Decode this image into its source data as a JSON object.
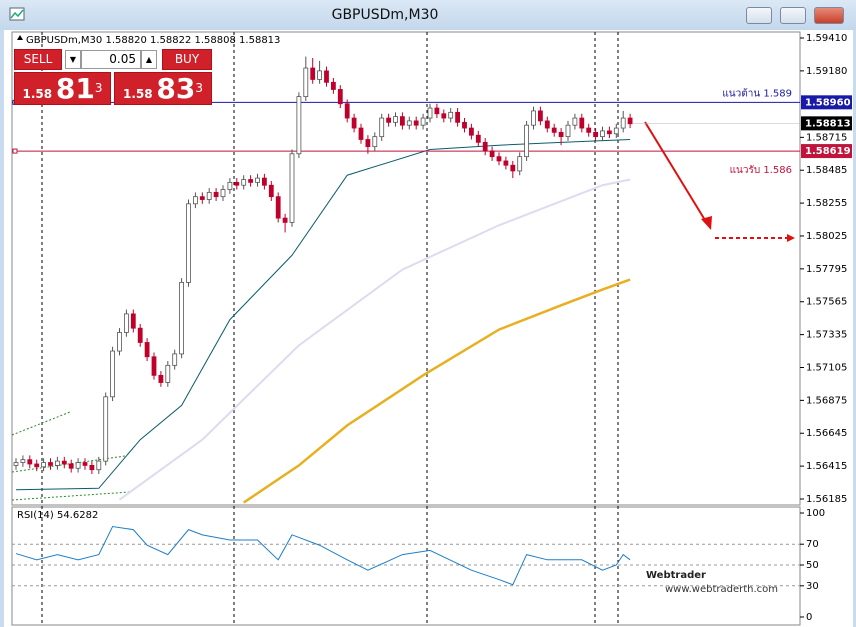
{
  "window": {
    "title": "GBPUSDm,M30"
  },
  "trade_panel": {
    "sell": "SELL",
    "lot": "0.05",
    "buy": "BUY",
    "bid": {
      "prefix": "1.58",
      "big": "81",
      "sup": "3"
    },
    "ask": {
      "prefix": "1.58",
      "big": "83",
      "sup": "3"
    }
  },
  "watermark": {
    "brand": "Webtrader",
    "url": "www.webtraderth.com"
  },
  "chart_data": {
    "type": "candlestick",
    "header": "GBPUSDm,M30 1.58820 1.58822 1.58808 1.58813",
    "ylim": [
      1.56185,
      1.5941
    ],
    "yticks": [
      {
        "value": 1.5941,
        "label": "1.59410"
      },
      {
        "value": 1.5918,
        "label": "1.59180"
      },
      {
        "value": 1.58715,
        "label": "1.58715"
      },
      {
        "value": 1.58485,
        "label": "1.58485"
      },
      {
        "value": 1.58255,
        "label": "1.58255"
      },
      {
        "value": 1.58025,
        "label": "1.58025"
      },
      {
        "value": 1.57795,
        "label": "1.57795"
      },
      {
        "value": 1.57565,
        "label": "1.57565"
      },
      {
        "value": 1.57335,
        "label": "1.57335"
      },
      {
        "value": 1.57105,
        "label": "1.57105"
      },
      {
        "value": 1.56875,
        "label": "1.56875"
      },
      {
        "value": 1.56645,
        "label": "1.56645"
      },
      {
        "value": 1.56415,
        "label": "1.56415"
      },
      {
        "value": 1.56185,
        "label": "1.56185"
      }
    ],
    "candles": {
      "open": [
        1.5642,
        1.5644,
        1.5646,
        1.5643,
        1.5641,
        1.5644,
        1.5642,
        1.5645,
        1.5643,
        1.564,
        1.5644,
        1.5642,
        1.5639,
        1.5645,
        1.569,
        1.5722,
        1.5735,
        1.5748,
        1.5738,
        1.5728,
        1.5718,
        1.5705,
        1.57,
        1.5712,
        1.572,
        1.577,
        1.5825,
        1.583,
        1.5828,
        1.5833,
        1.583,
        1.5835,
        1.584,
        1.5838,
        1.5842,
        1.584,
        1.5843,
        1.5838,
        1.583,
        1.5815,
        1.5812,
        1.586,
        1.59,
        1.592,
        1.5912,
        1.5918,
        1.591,
        1.5905,
        1.5895,
        1.5885,
        1.5878,
        1.587,
        1.5865,
        1.5872,
        1.5885,
        1.5882,
        1.5886,
        1.588,
        1.5883,
        1.588,
        1.5885,
        1.5892,
        1.5888,
        1.5885,
        1.5889,
        1.5882,
        1.5878,
        1.5873,
        1.5868,
        1.5862,
        1.5858,
        1.5855,
        1.5852,
        1.5848,
        1.5858,
        1.588,
        1.589,
        1.5883,
        1.5878,
        1.5875,
        1.5872,
        1.588,
        1.5885,
        1.5878,
        1.5875,
        1.5872,
        1.5876,
        1.5874,
        1.5878,
        1.5885
      ],
      "high": [
        1.5647,
        1.5649,
        1.5649,
        1.5646,
        1.5647,
        1.5647,
        1.5648,
        1.5648,
        1.5646,
        1.5647,
        1.5647,
        1.5645,
        1.5648,
        1.5693,
        1.5725,
        1.5738,
        1.5751,
        1.5751,
        1.5741,
        1.5731,
        1.5721,
        1.5708,
        1.5715,
        1.5723,
        1.5773,
        1.5828,
        1.5833,
        1.5833,
        1.5836,
        1.5836,
        1.5838,
        1.5843,
        1.5843,
        1.5845,
        1.5845,
        1.5846,
        1.5846,
        1.5841,
        1.5833,
        1.5818,
        1.5863,
        1.5903,
        1.5928,
        1.5927,
        1.5925,
        1.5921,
        1.5913,
        1.5908,
        1.5898,
        1.5888,
        1.5881,
        1.5873,
        1.5875,
        1.5888,
        1.5888,
        1.5889,
        1.5889,
        1.5886,
        1.5886,
        1.5888,
        1.5895,
        1.5895,
        1.5891,
        1.5892,
        1.5892,
        1.5885,
        1.5881,
        1.5876,
        1.5871,
        1.5865,
        1.5861,
        1.5858,
        1.5855,
        1.5861,
        1.5883,
        1.5893,
        1.5893,
        1.5886,
        1.5881,
        1.5878,
        1.5883,
        1.5888,
        1.5888,
        1.5881,
        1.5878,
        1.5879,
        1.5879,
        1.5881,
        1.589,
        1.5888
      ],
      "low": [
        1.5639,
        1.5641,
        1.564,
        1.5638,
        1.5638,
        1.5639,
        1.5639,
        1.564,
        1.5637,
        1.5637,
        1.5639,
        1.5636,
        1.5636,
        1.5642,
        1.5687,
        1.5719,
        1.5732,
        1.5735,
        1.5725,
        1.5715,
        1.5702,
        1.5697,
        1.5697,
        1.5709,
        1.5717,
        1.5767,
        1.5822,
        1.5825,
        1.5825,
        1.5827,
        1.5827,
        1.5832,
        1.5835,
        1.5835,
        1.5837,
        1.5837,
        1.5835,
        1.5827,
        1.5812,
        1.5805,
        1.5809,
        1.5857,
        1.5897,
        1.5909,
        1.5909,
        1.5907,
        1.5902,
        1.5892,
        1.5882,
        1.5875,
        1.5867,
        1.586,
        1.5862,
        1.5869,
        1.5879,
        1.5879,
        1.5877,
        1.5877,
        1.5877,
        1.5877,
        1.5882,
        1.5885,
        1.5882,
        1.5882,
        1.5879,
        1.5875,
        1.587,
        1.5865,
        1.5859,
        1.5855,
        1.5852,
        1.5849,
        1.5843,
        1.5845,
        1.5855,
        1.5877,
        1.588,
        1.5875,
        1.5872,
        1.5866,
        1.5869,
        1.5877,
        1.5875,
        1.5872,
        1.5869,
        1.5869,
        1.5871,
        1.5871,
        1.5875,
        1.5878
      ],
      "close": [
        1.5644,
        1.5646,
        1.5643,
        1.5641,
        1.5644,
        1.5642,
        1.5645,
        1.5643,
        1.564,
        1.5644,
        1.5642,
        1.5639,
        1.5645,
        1.569,
        1.5722,
        1.5735,
        1.5748,
        1.5738,
        1.5728,
        1.5718,
        1.5705,
        1.57,
        1.5712,
        1.572,
        1.577,
        1.5825,
        1.583,
        1.5828,
        1.5833,
        1.583,
        1.5835,
        1.584,
        1.5838,
        1.5842,
        1.584,
        1.5843,
        1.5838,
        1.583,
        1.5815,
        1.5812,
        1.586,
        1.59,
        1.592,
        1.5912,
        1.5918,
        1.591,
        1.5905,
        1.5895,
        1.5885,
        1.5878,
        1.587,
        1.5865,
        1.5872,
        1.5885,
        1.5882,
        1.5886,
        1.588,
        1.5883,
        1.588,
        1.5885,
        1.5892,
        1.5888,
        1.5885,
        1.5889,
        1.5882,
        1.5878,
        1.5873,
        1.5868,
        1.5862,
        1.5858,
        1.5855,
        1.5852,
        1.5848,
        1.5858,
        1.588,
        1.589,
        1.5883,
        1.5878,
        1.5875,
        1.5872,
        1.588,
        1.5885,
        1.5878,
        1.5875,
        1.5872,
        1.5876,
        1.5874,
        1.5878,
        1.5885,
        1.5881
      ]
    },
    "bull_color": "#ffffff",
    "bear_color": "#c0002a",
    "moving_averages": [
      {
        "color": "#0b5c6b",
        "x": [
          0,
          12,
          18,
          24,
          31,
          40,
          48,
          60,
          70,
          79,
          89
        ],
        "values": [
          1.5625,
          1.5626,
          1.566,
          1.5684,
          1.5744,
          1.5789,
          1.5845,
          1.5863,
          1.5866,
          1.5868,
          1.587
        ]
      },
      {
        "color": "#dcdcf0",
        "x": [
          15,
          27,
          41,
          56,
          70,
          85,
          89
        ],
        "values": [
          1.5618,
          1.566,
          1.5726,
          1.5779,
          1.581,
          1.5838,
          1.5842
        ]
      },
      {
        "color": "#e8b020",
        "x": [
          33,
          41,
          48,
          59,
          70,
          79,
          85,
          89
        ],
        "values": [
          1.5616,
          1.5642,
          1.567,
          1.5705,
          1.5737,
          1.5754,
          1.5765,
          1.5772
        ]
      }
    ],
    "levels": [
      {
        "value": 1.5896,
        "label": "1.58960",
        "annotation": "แนวต้าน 1.589",
        "color": "#1a1aa8"
      },
      {
        "value": 1.58619,
        "label": "1.58619",
        "annotation": "แนวรับ 1.586",
        "color": "#c0143c"
      }
    ],
    "current_price": {
      "value": 1.58813,
      "label": "1.58813"
    },
    "rsi": {
      "label": "RSI(14) 54.6282",
      "color": "#1e7ec8",
      "ylim": [
        0,
        100
      ],
      "yticks": [
        0,
        30,
        50,
        70,
        100
      ],
      "x": [
        0,
        3,
        6,
        9,
        12,
        14,
        17,
        19,
        22,
        25,
        27,
        31,
        35,
        38,
        40,
        44,
        48,
        51,
        56,
        60,
        66,
        70,
        72,
        74,
        77,
        82,
        85,
        87,
        88,
        89
      ],
      "values": [
        61,
        55,
        60,
        55,
        60,
        87,
        84,
        69,
        60,
        84,
        79,
        74,
        74,
        55,
        79,
        69,
        55,
        45,
        60,
        64,
        45,
        36,
        31,
        60,
        55,
        55,
        45,
        50,
        60,
        55
      ]
    }
  }
}
